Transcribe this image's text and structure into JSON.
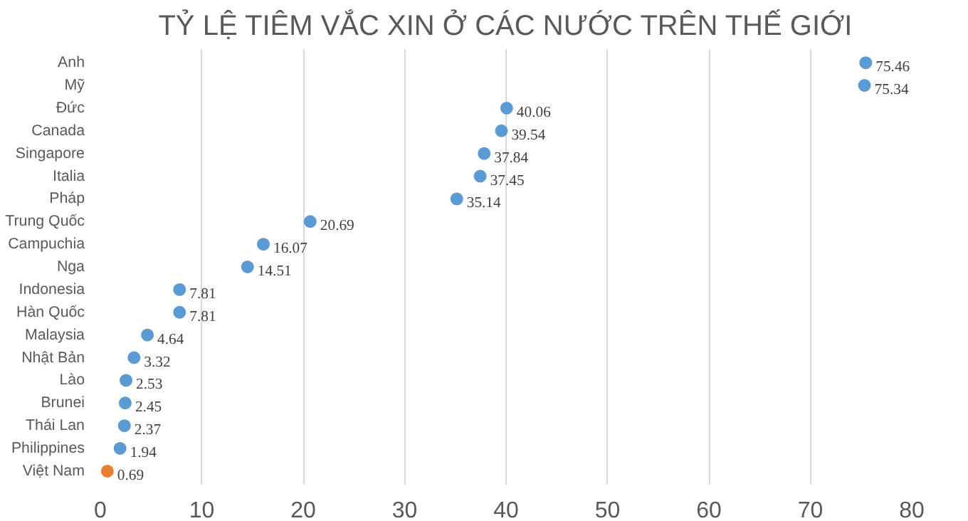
{
  "chart_data": {
    "type": "scatter",
    "orientation": "horizontal",
    "title": "TỶ LỆ TIÊM VẮC XIN Ở CÁC NƯỚC TRÊN THẾ GIỚI",
    "categories": [
      "Anh",
      "Mỹ",
      "Đức",
      "Canada",
      "Singapore",
      "Italia",
      "Pháp",
      "Trung Quốc",
      "Campuchia",
      "Nga",
      "Indonesia",
      "Hàn Quốc",
      "Malaysia",
      "Nhật Bản",
      "Lào",
      "Brunei",
      "Thái Lan",
      "Philippines",
      "Việt Nam"
    ],
    "values": [
      75.46,
      75.34,
      40.06,
      39.54,
      37.84,
      37.45,
      35.14,
      20.69,
      16.07,
      14.51,
      7.81,
      7.81,
      4.64,
      3.32,
      2.53,
      2.45,
      2.37,
      1.94,
      0.69
    ],
    "colors": [
      "#5b9bd5",
      "#5b9bd5",
      "#5b9bd5",
      "#5b9bd5",
      "#5b9bd5",
      "#5b9bd5",
      "#5b9bd5",
      "#5b9bd5",
      "#5b9bd5",
      "#5b9bd5",
      "#5b9bd5",
      "#5b9bd5",
      "#5b9bd5",
      "#5b9bd5",
      "#5b9bd5",
      "#5b9bd5",
      "#5b9bd5",
      "#5b9bd5",
      "#ed7d31"
    ],
    "xlim": [
      0,
      80
    ],
    "xticks": [
      0,
      10,
      20,
      30,
      40,
      50,
      60,
      70,
      80
    ],
    "grid": "x",
    "marker": "circle",
    "data_labels": true
  }
}
